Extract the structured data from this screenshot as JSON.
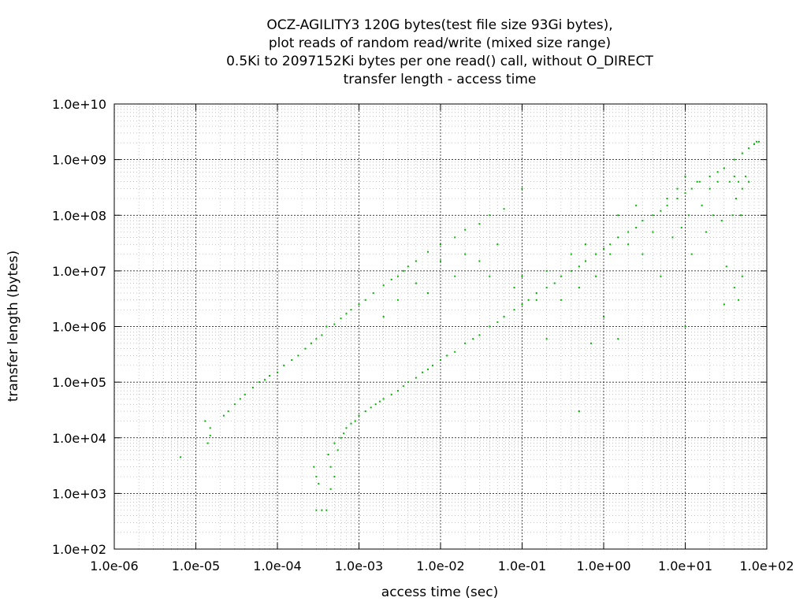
{
  "chart_data": {
    "type": "scatter",
    "title_lines": [
      "OCZ-AGILITY3 120G bytes(test file size 93Gi bytes),",
      "plot reads of random read/write (mixed size range)",
      "0.5Ki to 2097152Ki bytes per one read() call, without O_DIRECT",
      "transfer length - access time"
    ],
    "xlabel": "access time (sec)",
    "ylabel": "transfer length (bytes)",
    "x_scale": "log",
    "y_scale": "log",
    "xlim": [
      1e-06,
      100
    ],
    "ylim": [
      100,
      10000000000.0
    ],
    "x_ticks": [
      1e-06,
      1e-05,
      0.0001,
      0.001,
      0.01,
      0.1,
      1,
      10,
      100
    ],
    "y_ticks": [
      100,
      1000.0,
      10000.0,
      100000.0,
      1000000.0,
      10000000.0,
      100000000.0,
      1000000000.0,
      10000000000.0
    ],
    "x_tick_labels": [
      "1.0e-06",
      "1.0e-05",
      "1.0e-04",
      "1.0e-03",
      "1.0e-02",
      "1.0e-01",
      "1.0e+00",
      "1.0e+01",
      "1.0e+02"
    ],
    "y_tick_labels": [
      "1.0e+02",
      "1.0e+03",
      "1.0e+04",
      "1.0e+05",
      "1.0e+06",
      "1.0e+07",
      "1.0e+08",
      "1.0e+09",
      "1.0e+10"
    ],
    "grid": true,
    "minor_grid": true,
    "point_color": "#00b400",
    "series": [
      {
        "name": "",
        "points": [
          [
            6.5e-06,
            4500
          ],
          [
            1.3e-05,
            20000
          ],
          [
            1.4e-05,
            8000
          ],
          [
            1.5e-05,
            11000
          ],
          [
            1.5e-05,
            15000
          ],
          [
            2.2e-05,
            25000
          ],
          [
            2.5e-05,
            30000
          ],
          [
            3e-05,
            40000
          ],
          [
            3.5e-05,
            50000
          ],
          [
            4e-05,
            60000
          ],
          [
            5e-05,
            80000
          ],
          [
            6e-05,
            100000
          ],
          [
            7e-05,
            110000
          ],
          [
            8e-05,
            130000
          ],
          [
            0.0001,
            150000
          ],
          [
            0.00012,
            200000
          ],
          [
            0.00015,
            250000
          ],
          [
            0.00018,
            300000
          ],
          [
            0.00022,
            400000
          ],
          [
            0.00026,
            500000
          ],
          [
            0.0003,
            600000
          ],
          [
            0.00035,
            700000
          ],
          [
            0.0004,
            1000000.0
          ],
          [
            0.0005,
            1100000.0
          ],
          [
            0.0006,
            1400000.0
          ],
          [
            0.0007,
            1700000.0
          ],
          [
            0.0008,
            2000000.0
          ],
          [
            0.001,
            2500000.0
          ],
          [
            0.0012,
            3000000.0
          ],
          [
            0.0015,
            4000000.0
          ],
          [
            0.002,
            5500000.0
          ],
          [
            0.0025,
            7000000.0
          ],
          [
            0.003,
            8000000.0
          ],
          [
            0.0035,
            10000000.0
          ],
          [
            0.004,
            12000000.0
          ],
          [
            0.005,
            15000000.0
          ],
          [
            0.007,
            22000000.0
          ],
          [
            0.01,
            30000000.0
          ],
          [
            0.015,
            40000000.0
          ],
          [
            0.02,
            55000000.0
          ],
          [
            0.03,
            70000000.0
          ],
          [
            0.04,
            100000000.0
          ],
          [
            0.06,
            130000000.0
          ],
          [
            0.1,
            300000000.0
          ],
          [
            0.0003,
            500
          ],
          [
            0.00035,
            500
          ],
          [
            0.0004,
            500
          ],
          [
            0.00028,
            3000
          ],
          [
            0.0003,
            2000
          ],
          [
            0.00032,
            1500
          ],
          [
            0.00045,
            3000
          ],
          [
            0.0005,
            2000
          ],
          [
            0.00042,
            5000
          ],
          [
            0.00045,
            1200
          ],
          [
            0.0005,
            8000
          ],
          [
            0.00055,
            6000
          ],
          [
            0.0006,
            10000
          ],
          [
            0.00065,
            12000
          ],
          [
            0.0007,
            15000
          ],
          [
            0.0008,
            18000
          ],
          [
            0.0009,
            20000
          ],
          [
            0.001,
            25000
          ],
          [
            0.0012,
            30000
          ],
          [
            0.0014,
            35000
          ],
          [
            0.0016,
            40000
          ],
          [
            0.0018,
            45000
          ],
          [
            0.002,
            50000
          ],
          [
            0.0025,
            60000
          ],
          [
            0.003,
            70000
          ],
          [
            0.0035,
            85000
          ],
          [
            0.004,
            100000
          ],
          [
            0.005,
            120000
          ],
          [
            0.006,
            150000
          ],
          [
            0.007,
            170000
          ],
          [
            0.008,
            200000
          ],
          [
            0.01,
            250000
          ],
          [
            0.012,
            300000
          ],
          [
            0.015,
            350000
          ],
          [
            0.02,
            500000
          ],
          [
            0.025,
            600000
          ],
          [
            0.03,
            700000
          ],
          [
            0.04,
            1000000.0
          ],
          [
            0.05,
            1200000.0
          ],
          [
            0.06,
            1500000.0
          ],
          [
            0.08,
            2000000.0
          ],
          [
            0.1,
            2500000.0
          ],
          [
            0.12,
            3000000.0
          ],
          [
            0.15,
            4000000.0
          ],
          [
            0.2,
            5000000.0
          ],
          [
            0.25,
            6000000.0
          ],
          [
            0.3,
            8000000.0
          ],
          [
            0.4,
            10000000.0
          ],
          [
            0.5,
            12000000.0
          ],
          [
            0.6,
            15000000.0
          ],
          [
            0.8,
            20000000.0
          ],
          [
            1,
            25000000.0
          ],
          [
            1.2,
            30000000.0
          ],
          [
            1.5,
            40000000.0
          ],
          [
            2,
            50000000.0
          ],
          [
            2.5,
            60000000.0
          ],
          [
            3,
            80000000.0
          ],
          [
            4,
            100000000.0
          ],
          [
            5,
            120000000.0
          ],
          [
            6,
            150000000.0
          ],
          [
            8,
            200000000.0
          ],
          [
            10,
            250000000.0
          ],
          [
            12,
            300000000.0
          ],
          [
            15,
            400000000.0
          ],
          [
            20,
            500000000.0
          ],
          [
            25,
            600000000.0
          ],
          [
            30,
            700000000.0
          ],
          [
            40,
            1000000000.0
          ],
          [
            50,
            1300000000.0
          ],
          [
            60,
            1600000000.0
          ],
          [
            70,
            1900000000.0
          ],
          [
            75,
            2100000000.0
          ],
          [
            80,
            2100000000.0
          ],
          [
            0.08,
            5000000.0
          ],
          [
            0.1,
            8000000.0
          ],
          [
            0.15,
            3000000.0
          ],
          [
            0.2,
            10000000.0
          ],
          [
            0.3,
            3000000.0
          ],
          [
            0.4,
            20000000.0
          ],
          [
            0.5,
            5000000.0
          ],
          [
            0.6,
            30000000.0
          ],
          [
            0.8,
            8000000.0
          ],
          [
            1,
            1500000.0
          ],
          [
            1.2,
            20000000.0
          ],
          [
            1.5,
            100000000.0
          ],
          [
            2,
            30000000.0
          ],
          [
            2.5,
            150000000.0
          ],
          [
            3,
            20000000.0
          ],
          [
            4,
            50000000.0
          ],
          [
            5,
            8000000.0
          ],
          [
            6,
            200000000.0
          ],
          [
            7,
            40000000.0
          ],
          [
            8,
            300000000.0
          ],
          [
            9,
            60000000.0
          ],
          [
            10,
            500000000.0
          ],
          [
            11,
            100000000.0
          ],
          [
            12,
            20000000.0
          ],
          [
            14,
            400000000.0
          ],
          [
            16,
            150000000.0
          ],
          [
            18,
            50000000.0
          ],
          [
            20,
            300000000.0
          ],
          [
            22,
            100000000.0
          ],
          [
            25,
            400000000.0
          ],
          [
            28,
            80000000.0
          ],
          [
            30,
            2500000.0
          ],
          [
            32,
            12000000.0
          ],
          [
            35,
            400000000.0
          ],
          [
            38,
            100000000.0
          ],
          [
            40,
            500000000.0
          ],
          [
            42,
            200000000.0
          ],
          [
            45,
            400000000.0
          ],
          [
            48,
            100000000.0
          ],
          [
            50,
            300000000.0
          ],
          [
            55,
            500000000.0
          ],
          [
            60,
            400000000.0
          ],
          [
            40,
            5000000.0
          ],
          [
            45,
            3000000.0
          ],
          [
            50,
            8000000.0
          ],
          [
            0.05,
            30000000.0
          ],
          [
            0.03,
            15000000.0
          ],
          [
            0.02,
            20000000.0
          ],
          [
            0.015,
            8000000.0
          ],
          [
            0.01,
            15000000.0
          ],
          [
            0.007,
            4000000.0
          ],
          [
            0.005,
            6000000.0
          ],
          [
            0.003,
            3000000.0
          ],
          [
            0.002,
            1500000.0
          ],
          [
            0.04,
            8000000.0
          ],
          [
            0.2,
            600000.0
          ],
          [
            0.5,
            30000.0
          ],
          [
            1.5,
            600000.0
          ],
          [
            10,
            1000000.0
          ],
          [
            0.7,
            500000.0
          ]
        ]
      }
    ]
  }
}
